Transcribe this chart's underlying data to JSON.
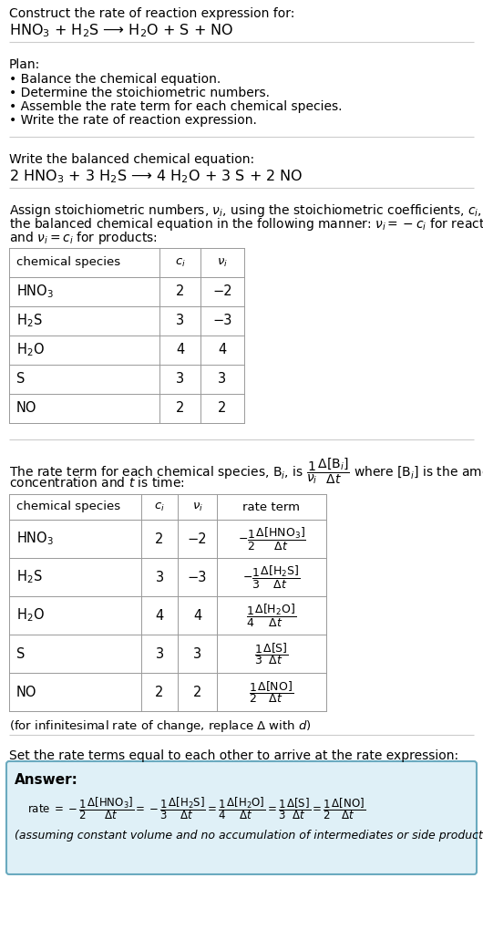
{
  "title_line1": "Construct the rate of reaction expression for:",
  "title_line2": "HNO$_3$ + H$_2$S ⟶ H$_2$O + S + NO",
  "plan_header": "Plan:",
  "plan_items": [
    "• Balance the chemical equation.",
    "• Determine the stoichiometric numbers.",
    "• Assemble the rate term for each chemical species.",
    "• Write the rate of reaction expression."
  ],
  "balanced_header": "Write the balanced chemical equation:",
  "balanced_eq": "2 HNO$_3$ + 3 H$_2$S ⟶ 4 H$_2$O + 3 S + 2 NO",
  "assign_text": "Assign stoichiometric numbers, $\\nu_i$, using the stoichiometric coefficients, $c_i$, from\nthe balanced chemical equation in the following manner: $\\nu_i = -c_i$ for reactants\nand $\\nu_i = c_i$ for products:",
  "table1_headers": [
    "chemical species",
    "$c_i$",
    "$\\nu_i$"
  ],
  "table1_data": [
    [
      "HNO$_3$",
      "2",
      "−2"
    ],
    [
      "H$_2$S",
      "3",
      "−3"
    ],
    [
      "H$_2$O",
      "4",
      "4"
    ],
    [
      "S",
      "3",
      "3"
    ],
    [
      "NO",
      "2",
      "2"
    ]
  ],
  "rate_text": "The rate term for each chemical species, B$_i$, is $\\dfrac{1}{\\nu_i}\\dfrac{\\Delta[\\mathrm{B}_i]}{\\Delta t}$ where [B$_i$] is the amount\nconcentration and $t$ is time:",
  "table2_headers": [
    "chemical species",
    "$c_i$",
    "$\\nu_i$",
    "rate term"
  ],
  "table2_data": [
    [
      "HNO$_3$",
      "2",
      "−2",
      "$-\\dfrac{1}{2}\\dfrac{\\Delta[\\mathrm{HNO_3}]}{\\Delta t}$"
    ],
    [
      "H$_2$S",
      "3",
      "−3",
      "$-\\dfrac{1}{3}\\dfrac{\\Delta[\\mathrm{H_2S}]}{\\Delta t}$"
    ],
    [
      "H$_2$O",
      "4",
      "4",
      "$\\dfrac{1}{4}\\dfrac{\\Delta[\\mathrm{H_2O}]}{\\Delta t}$"
    ],
    [
      "S",
      "3",
      "3",
      "$\\dfrac{1}{3}\\dfrac{\\Delta[\\mathrm{S}]}{\\Delta t}$"
    ],
    [
      "NO",
      "2",
      "2",
      "$\\dfrac{1}{2}\\dfrac{\\Delta[\\mathrm{NO}]}{\\Delta t}$"
    ]
  ],
  "infinitesimal_note": "(for infinitesimal rate of change, replace Δ with $d$)",
  "set_rate_text": "Set the rate terms equal to each other to arrive at the rate expression:",
  "answer_label": "Answer:",
  "answer_rate": "rate $= -\\dfrac{1}{2}\\dfrac{\\Delta[\\mathrm{HNO_3}]}{\\Delta t} = -\\dfrac{1}{3}\\dfrac{\\Delta[\\mathrm{H_2S}]}{\\Delta t} = \\dfrac{1}{4}\\dfrac{\\Delta[\\mathrm{H_2O}]}{\\Delta t} = \\dfrac{1}{3}\\dfrac{\\Delta[\\mathrm{S}]}{\\Delta t} = \\dfrac{1}{2}\\dfrac{\\Delta[\\mathrm{NO}]}{\\Delta t}$",
  "answer_note": "(assuming constant volume and no accumulation of intermediates or side products)",
  "bg_color": "#ffffff",
  "answer_bg_color": "#dff0f7",
  "answer_border_color": "#6aaabf",
  "table_border_color": "#999999",
  "sep_line_color": "#cccccc"
}
